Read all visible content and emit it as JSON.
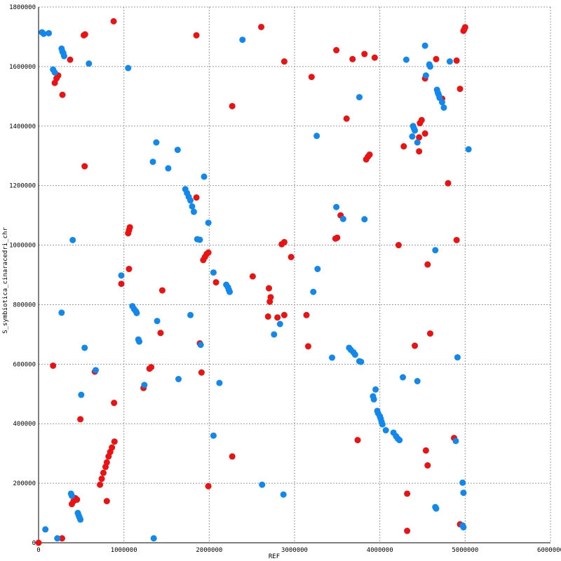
{
  "chart_data": {
    "type": "scatter",
    "xlabel": "REF",
    "ylabel": "S_symbiotica_cinaracedri_chr",
    "xlim": [
      0,
      6000000
    ],
    "ylim": [
      0,
      1800000
    ],
    "x_ticks": [
      "0",
      "1000000",
      "2000000",
      "3000000",
      "4000000",
      "5000000",
      "6000000"
    ],
    "y_ticks": [
      "0",
      "200000",
      "400000",
      "600000",
      "800000",
      "1000000",
      "1200000",
      "1400000",
      "1600000",
      "1800000"
    ],
    "grid": true,
    "colors": {
      "red": "#ee1111",
      "blue": "#1188ee"
    },
    "series": [
      {
        "color": "red",
        "points": [
          [
            0,
            0
          ],
          [
            275000,
            15000
          ],
          [
            170000,
            595000
          ],
          [
            490000,
            415000
          ],
          [
            660000,
            575000
          ],
          [
            885000,
            470000
          ],
          [
            720000,
            195000
          ],
          [
            740000,
            215000
          ],
          [
            760000,
            235000
          ],
          [
            785000,
            255000
          ],
          [
            800000,
            270000
          ],
          [
            820000,
            290000
          ],
          [
            840000,
            305000
          ],
          [
            860000,
            320000
          ],
          [
            890000,
            340000
          ],
          [
            800000,
            140000
          ],
          [
            390000,
            130000
          ],
          [
            410000,
            140000
          ],
          [
            430000,
            150000
          ],
          [
            450000,
            145000
          ],
          [
            970000,
            870000
          ],
          [
            1060000,
            920000
          ],
          [
            1050000,
            1040000
          ],
          [
            1060000,
            1050000
          ],
          [
            1070000,
            1060000
          ],
          [
            1230000,
            520000
          ],
          [
            1300000,
            585000
          ],
          [
            1320000,
            590000
          ],
          [
            1430000,
            705000
          ],
          [
            1450000,
            848000
          ],
          [
            540000,
            1265000
          ],
          [
            530000,
            1705000
          ],
          [
            545000,
            1708000
          ],
          [
            880000,
            1752000
          ],
          [
            190000,
            1545000
          ],
          [
            210000,
            1560000
          ],
          [
            230000,
            1570000
          ],
          [
            280000,
            1505000
          ],
          [
            370000,
            1623000
          ],
          [
            1850000,
            1705000
          ],
          [
            1850000,
            1160000
          ],
          [
            1890000,
            670000
          ],
          [
            1910000,
            572000
          ],
          [
            1990000,
            190000
          ],
          [
            2080000,
            875000
          ],
          [
            1930000,
            950000
          ],
          [
            1950000,
            960000
          ],
          [
            1970000,
            970000
          ],
          [
            1990000,
            975000
          ],
          [
            2270000,
            1467000
          ],
          [
            2270000,
            290000
          ],
          [
            2510000,
            895000
          ],
          [
            2610000,
            1733000
          ],
          [
            2690000,
            760000
          ],
          [
            2700000,
            855000
          ],
          [
            2710000,
            810000
          ],
          [
            2720000,
            825000
          ],
          [
            2800000,
            757000
          ],
          [
            2850000,
            1003000
          ],
          [
            2880000,
            1010000
          ],
          [
            2880000,
            765000
          ],
          [
            2960000,
            960000
          ],
          [
            2880000,
            1617000
          ],
          [
            3140000,
            765000
          ],
          [
            3160000,
            660000
          ],
          [
            3200000,
            1565000
          ],
          [
            3490000,
            1655000
          ],
          [
            3480000,
            1022000
          ],
          [
            3500000,
            1025000
          ],
          [
            3540000,
            1100000
          ],
          [
            3610000,
            1425000
          ],
          [
            3680000,
            1625000
          ],
          [
            3740000,
            345000
          ],
          [
            3820000,
            1642000
          ],
          [
            3840000,
            1288000
          ],
          [
            3860000,
            1297000
          ],
          [
            3880000,
            1304000
          ],
          [
            3940000,
            1630000
          ],
          [
            4220000,
            1000000
          ],
          [
            4280000,
            1332000
          ],
          [
            4320000,
            165000
          ],
          [
            4320000,
            40000
          ],
          [
            4410000,
            662000
          ],
          [
            4460000,
            1315000
          ],
          [
            4460000,
            1362000
          ],
          [
            4470000,
            1410000
          ],
          [
            4490000,
            1420000
          ],
          [
            4530000,
            1560000
          ],
          [
            4530000,
            1375000
          ],
          [
            4540000,
            310000
          ],
          [
            4560000,
            935000
          ],
          [
            4560000,
            260000
          ],
          [
            4590000,
            703000
          ],
          [
            4660000,
            1625000
          ],
          [
            4730000,
            1492000
          ],
          [
            4800000,
            1208000
          ],
          [
            4870000,
            352000
          ],
          [
            4900000,
            1017000
          ],
          [
            4900000,
            1620000
          ],
          [
            4940000,
            1525000
          ],
          [
            4940000,
            62000
          ],
          [
            4980000,
            1720000
          ],
          [
            4990000,
            1725000
          ],
          [
            5000000,
            1732000
          ]
        ]
      },
      {
        "color": "blue",
        "points": [
          [
            40000,
            1715000
          ],
          [
            60000,
            1710000
          ],
          [
            120000,
            1712000
          ],
          [
            170000,
            1590000
          ],
          [
            190000,
            1580000
          ],
          [
            270000,
            1660000
          ],
          [
            280000,
            1650000
          ],
          [
            290000,
            1645000
          ],
          [
            300000,
            1635000
          ],
          [
            590000,
            1610000
          ],
          [
            1050000,
            1595000
          ],
          [
            2390000,
            1690000
          ],
          [
            4310000,
            1623000
          ],
          [
            4530000,
            1670000
          ],
          [
            4580000,
            1607000
          ],
          [
            4590000,
            1600000
          ],
          [
            4540000,
            1570000
          ],
          [
            4820000,
            1617000
          ],
          [
            4670000,
            1522000
          ],
          [
            4680000,
            1512000
          ],
          [
            4690000,
            1505000
          ],
          [
            4700000,
            1495000
          ],
          [
            4730000,
            1480000
          ],
          [
            4750000,
            1462000
          ],
          [
            3760000,
            1497000
          ],
          [
            4390000,
            1400000
          ],
          [
            4400000,
            1392000
          ],
          [
            4410000,
            1385000
          ],
          [
            4380000,
            1365000
          ],
          [
            4440000,
            1345000
          ],
          [
            3260000,
            1367000
          ],
          [
            5040000,
            1322000
          ],
          [
            1380000,
            1345000
          ],
          [
            1340000,
            1280000
          ],
          [
            1520000,
            1258000
          ],
          [
            1630000,
            1320000
          ],
          [
            1940000,
            1230000
          ],
          [
            1720000,
            1188000
          ],
          [
            1740000,
            1175000
          ],
          [
            1760000,
            1162000
          ],
          [
            1780000,
            1150000
          ],
          [
            1800000,
            1130000
          ],
          [
            1820000,
            1112000
          ],
          [
            1990000,
            1075000
          ],
          [
            3490000,
            1128000
          ],
          [
            3570000,
            1088000
          ],
          [
            3820000,
            1087000
          ],
          [
            1860000,
            1020000
          ],
          [
            1890000,
            1018000
          ],
          [
            400000,
            1017000
          ],
          [
            4650000,
            983000
          ],
          [
            970000,
            898000
          ],
          [
            2050000,
            908000
          ],
          [
            3270000,
            920000
          ],
          [
            2200000,
            867000
          ],
          [
            2220000,
            858000
          ],
          [
            2230000,
            850000
          ],
          [
            2240000,
            843000
          ],
          [
            3220000,
            843000
          ],
          [
            1100000,
            795000
          ],
          [
            1120000,
            785000
          ],
          [
            1140000,
            778000
          ],
          [
            1150000,
            772000
          ],
          [
            270000,
            773000
          ],
          [
            1390000,
            745000
          ],
          [
            1780000,
            765000
          ],
          [
            2830000,
            735000
          ],
          [
            2760000,
            700000
          ],
          [
            1170000,
            683000
          ],
          [
            1180000,
            676000
          ],
          [
            1900000,
            665000
          ],
          [
            540000,
            655000
          ],
          [
            3440000,
            622000
          ],
          [
            3640000,
            655000
          ],
          [
            3660000,
            648000
          ],
          [
            3690000,
            640000
          ],
          [
            3710000,
            632000
          ],
          [
            3760000,
            610000
          ],
          [
            3780000,
            608000
          ],
          [
            4910000,
            623000
          ],
          [
            670000,
            580000
          ],
          [
            1240000,
            530000
          ],
          [
            1640000,
            550000
          ],
          [
            2120000,
            537000
          ],
          [
            4270000,
            556000
          ],
          [
            4440000,
            543000
          ],
          [
            500000,
            497000
          ],
          [
            3950000,
            515000
          ],
          [
            3920000,
            492000
          ],
          [
            3930000,
            482000
          ],
          [
            3970000,
            443000
          ],
          [
            3980000,
            435000
          ],
          [
            4000000,
            425000
          ],
          [
            4010000,
            417000
          ],
          [
            4020000,
            407000
          ],
          [
            4030000,
            398000
          ],
          [
            4070000,
            378000
          ],
          [
            4160000,
            370000
          ],
          [
            4190000,
            358000
          ],
          [
            4210000,
            350000
          ],
          [
            4230000,
            345000
          ],
          [
            4890000,
            342000
          ],
          [
            2050000,
            360000
          ],
          [
            380000,
            165000
          ],
          [
            390000,
            158000
          ],
          [
            460000,
            100000
          ],
          [
            470000,
            92000
          ],
          [
            480000,
            85000
          ],
          [
            490000,
            78000
          ],
          [
            2620000,
            195000
          ],
          [
            2870000,
            162000
          ],
          [
            4650000,
            120000
          ],
          [
            4660000,
            115000
          ],
          [
            4970000,
            202000
          ],
          [
            4980000,
            168000
          ],
          [
            4970000,
            58000
          ],
          [
            4980000,
            52000
          ],
          [
            80000,
            45000
          ],
          [
            220000,
            15000
          ],
          [
            1350000,
            15000
          ]
        ]
      }
    ]
  }
}
